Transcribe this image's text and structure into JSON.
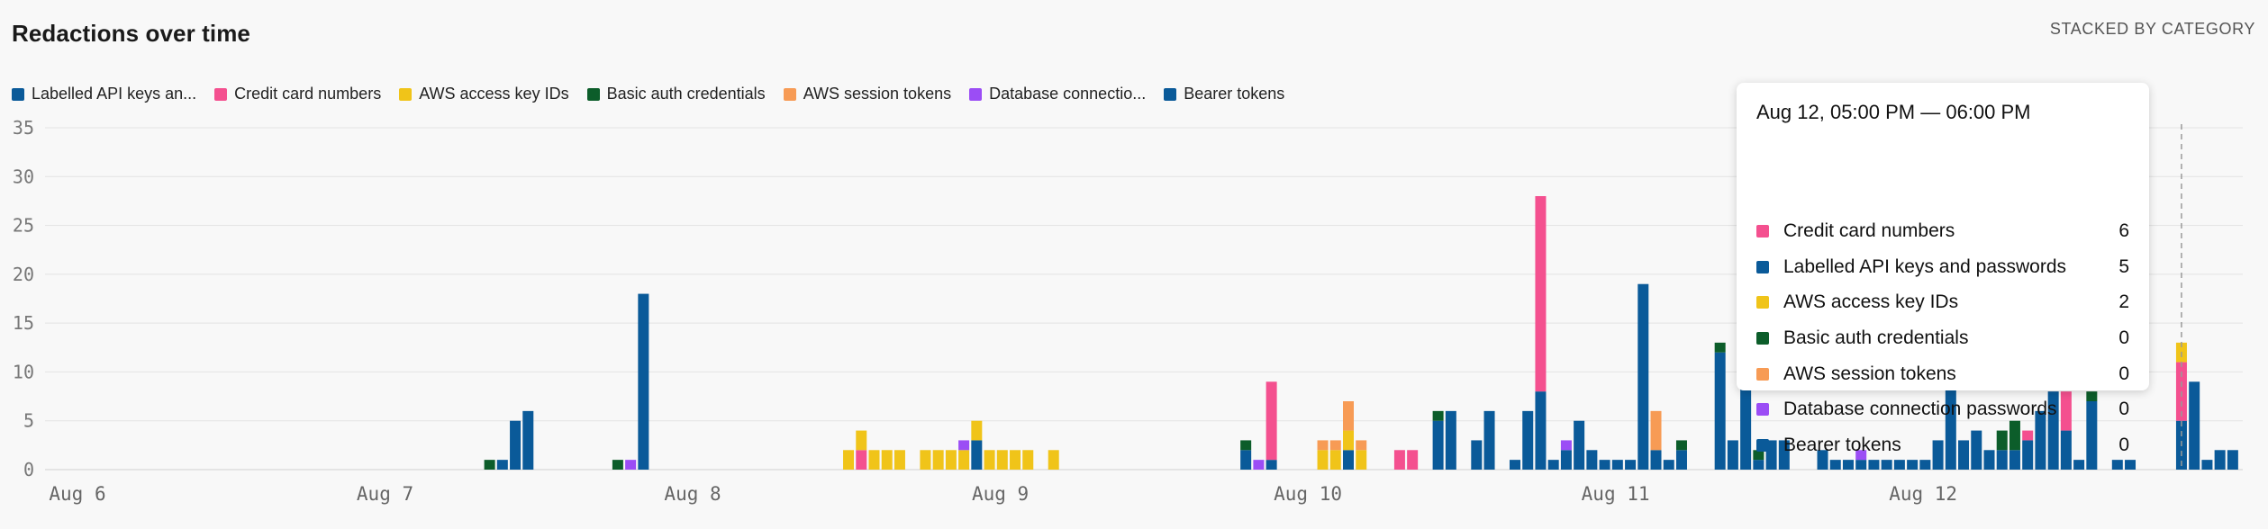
{
  "header": {
    "title": "Redactions over time",
    "subtitle": "STACKED BY CATEGORY"
  },
  "legend": [
    {
      "label": "Labelled API keys an...",
      "color": "#0a5a99"
    },
    {
      "label": "Credit card numbers",
      "color": "#f4508f"
    },
    {
      "label": "AWS access key IDs",
      "color": "#f0c419"
    },
    {
      "label": "Basic auth credentials",
      "color": "#0c5d2a"
    },
    {
      "label": "AWS session tokens",
      "color": "#f79b55"
    },
    {
      "label": "Database connectio...",
      "color": "#9b4df5"
    },
    {
      "label": "Bearer tokens",
      "color": "#0a5a99"
    }
  ],
  "tooltip": {
    "title": "Aug 12, 05:00 PM — 06:00 PM",
    "rows": [
      {
        "label": "Credit card numbers",
        "value": "6",
        "color": "#f4508f"
      },
      {
        "label": "Labelled API keys and passwords",
        "value": "5",
        "color": "#0a5a99"
      },
      {
        "label": "AWS access key IDs",
        "value": "2",
        "color": "#f0c419"
      },
      {
        "label": "Basic auth credentials",
        "value": "0",
        "color": "#0c5d2a"
      },
      {
        "label": "AWS session tokens",
        "value": "0",
        "color": "#f79b55"
      },
      {
        "label": "Database connection passwords",
        "value": "0",
        "color": "#9b4df5"
      },
      {
        "label": "Bearer tokens",
        "value": "0",
        "color": "#0a5a99"
      }
    ]
  },
  "chart_data": {
    "type": "bar",
    "stacked": true,
    "ylim": [
      0,
      35
    ],
    "yticks": [
      0,
      5,
      10,
      15,
      20,
      25,
      30,
      35
    ],
    "xlabels": [
      {
        "label": "Aug 6",
        "hour": 0
      },
      {
        "label": "Aug 7",
        "hour": 24
      },
      {
        "label": "Aug 8",
        "hour": 48
      },
      {
        "label": "Aug 9",
        "hour": 72
      },
      {
        "label": "Aug 10",
        "hour": 96
      },
      {
        "label": "Aug 11",
        "hour": 120
      },
      {
        "label": "Aug 12",
        "hour": 144
      }
    ],
    "x_unit": "hours since Aug 6 00:00",
    "series_order": [
      "api",
      "cc",
      "aws",
      "basic",
      "sess",
      "db",
      "bearer"
    ],
    "series_colors": {
      "api": "#0a5a99",
      "cc": "#f4508f",
      "aws": "#f0c419",
      "basic": "#0c5d2a",
      "sess": "#f79b55",
      "db": "#9b4df5",
      "bearer": "#0a5a99"
    },
    "bars": [
      {
        "h": 33,
        "basic": 1
      },
      {
        "h": 34,
        "api": 1
      },
      {
        "h": 35,
        "api": 5
      },
      {
        "h": 36,
        "api": 6
      },
      {
        "h": 43,
        "basic": 1
      },
      {
        "h": 44,
        "db": 1
      },
      {
        "h": 45,
        "api": 18
      },
      {
        "h": 61,
        "aws": 2
      },
      {
        "h": 62,
        "cc": 2,
        "aws": 2
      },
      {
        "h": 63,
        "aws": 2
      },
      {
        "h": 64,
        "aws": 2
      },
      {
        "h": 65,
        "aws": 2
      },
      {
        "h": 67,
        "aws": 2
      },
      {
        "h": 68,
        "aws": 2
      },
      {
        "h": 69,
        "aws": 2
      },
      {
        "h": 70,
        "aws": 2,
        "db": 1
      },
      {
        "h": 71,
        "api": 3,
        "aws": 2
      },
      {
        "h": 72,
        "aws": 2
      },
      {
        "h": 73,
        "aws": 2
      },
      {
        "h": 74,
        "aws": 2
      },
      {
        "h": 75,
        "aws": 2
      },
      {
        "h": 77,
        "aws": 2
      },
      {
        "h": 92,
        "api": 2,
        "basic": 1
      },
      {
        "h": 93,
        "db": 1
      },
      {
        "h": 94,
        "api": 1,
        "cc": 8
      },
      {
        "h": 98,
        "aws": 2,
        "sess": 1
      },
      {
        "h": 99,
        "aws": 2,
        "sess": 1
      },
      {
        "h": 100,
        "api": 2,
        "aws": 2,
        "sess": 3
      },
      {
        "h": 101,
        "aws": 2,
        "sess": 1
      },
      {
        "h": 104,
        "cc": 2
      },
      {
        "h": 105,
        "cc": 2
      },
      {
        "h": 107,
        "api": 5,
        "basic": 1
      },
      {
        "h": 108,
        "api": 6
      },
      {
        "h": 110,
        "api": 3
      },
      {
        "h": 111,
        "api": 6
      },
      {
        "h": 113,
        "api": 1
      },
      {
        "h": 114,
        "api": 6
      },
      {
        "h": 115,
        "api": 8,
        "cc": 20
      },
      {
        "h": 116,
        "api": 1
      },
      {
        "h": 117,
        "api": 2,
        "db": 1
      },
      {
        "h": 118,
        "api": 5
      },
      {
        "h": 119,
        "api": 2
      },
      {
        "h": 120,
        "api": 1
      },
      {
        "h": 121,
        "api": 1
      },
      {
        "h": 122,
        "api": 1
      },
      {
        "h": 123,
        "api": 19
      },
      {
        "h": 124,
        "api": 2,
        "sess": 4
      },
      {
        "h": 125,
        "api": 1
      },
      {
        "h": 126,
        "api": 2,
        "basic": 1
      },
      {
        "h": 129,
        "api": 12,
        "basic": 1
      },
      {
        "h": 130,
        "api": 3
      },
      {
        "h": 131,
        "api": 15
      },
      {
        "h": 132,
        "api": 1,
        "basic": 1
      },
      {
        "h": 133,
        "api": 3
      },
      {
        "h": 134,
        "api": 3
      },
      {
        "h": 137,
        "api": 2
      },
      {
        "h": 138,
        "api": 1
      },
      {
        "h": 139,
        "api": 1
      },
      {
        "h": 140,
        "api": 1,
        "db": 1
      },
      {
        "h": 141,
        "api": 1
      },
      {
        "h": 142,
        "api": 1
      },
      {
        "h": 143,
        "api": 1
      },
      {
        "h": 144,
        "api": 1
      },
      {
        "h": 145,
        "api": 1
      },
      {
        "h": 146,
        "api": 3
      },
      {
        "h": 147,
        "api": 12
      },
      {
        "h": 148,
        "api": 3
      },
      {
        "h": 149,
        "api": 4
      },
      {
        "h": 150,
        "api": 2
      },
      {
        "h": 151,
        "api": 2,
        "basic": 2
      },
      {
        "h": 152,
        "api": 2,
        "basic": 3
      },
      {
        "h": 153,
        "api": 3,
        "cc": 1
      },
      {
        "h": 154,
        "api": 6
      },
      {
        "h": 155,
        "api": 8
      },
      {
        "h": 156,
        "api": 4,
        "cc": 4
      },
      {
        "h": 157,
        "api": 1
      },
      {
        "h": 158,
        "api": 7,
        "basic": 1
      },
      {
        "h": 160,
        "api": 1
      },
      {
        "h": 161,
        "api": 1
      },
      {
        "h": 165,
        "api": 5,
        "cc": 6,
        "aws": 2
      },
      {
        "h": 166,
        "api": 9
      },
      {
        "h": 167,
        "api": 1
      },
      {
        "h": 168,
        "api": 2
      },
      {
        "h": 169,
        "api": 2
      }
    ]
  }
}
